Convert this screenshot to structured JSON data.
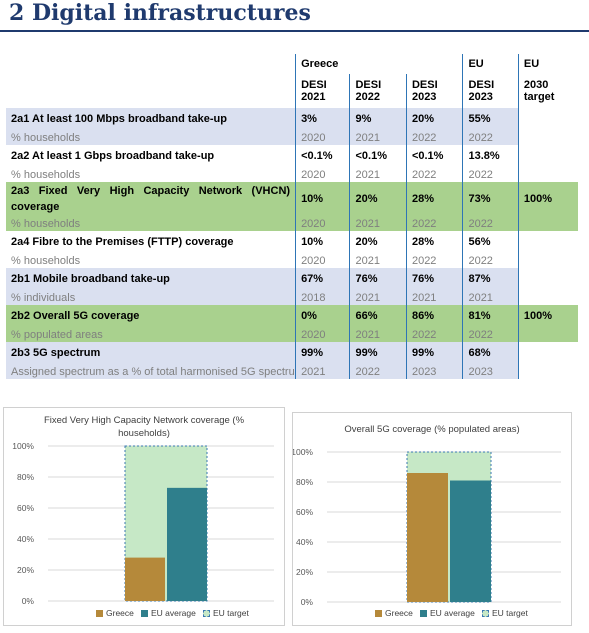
{
  "title": "2 Digital infrastructures",
  "header": {
    "greece": "Greece",
    "eu": "EU",
    "eu2": "EU",
    "cols": [
      {
        "line1": "DESI",
        "line2": "2021"
      },
      {
        "line1": "DESI",
        "line2": "2022"
      },
      {
        "line1": "DESI",
        "line2": "2023"
      },
      {
        "line1": "DESI",
        "line2": "2023"
      },
      {
        "line1": "2030",
        "line2": "target"
      }
    ]
  },
  "rows": [
    {
      "label": "2a1 At least 100 Mbps broadband take-up",
      "sub": "% households",
      "values": [
        "3%",
        "9%",
        "20%",
        "55%",
        ""
      ],
      "years": [
        "2020",
        "2021",
        "2022",
        "2022",
        ""
      ]
    },
    {
      "label": "2a2 At least 1 Gbps broadband take-up",
      "sub": "% households",
      "values": [
        "<0.1%",
        "<0.1%",
        "<0.1%",
        "13.8%",
        ""
      ],
      "years": [
        "2020",
        "2021",
        "2022",
        "2022",
        ""
      ]
    },
    {
      "label": "2a3 Fixed Very High Capacity Network (VHCN) coverage",
      "sub": "% households",
      "values": [
        "10%",
        "20%",
        "28%",
        "73%",
        "100%"
      ],
      "years": [
        "2020",
        "2021",
        "2022",
        "2022",
        ""
      ]
    },
    {
      "label": "2a4 Fibre to the Premises (FTTP) coverage",
      "sub": "% households",
      "values": [
        "10%",
        "20%",
        "28%",
        "56%",
        ""
      ],
      "years": [
        "2020",
        "2021",
        "2022",
        "2022",
        ""
      ]
    },
    {
      "label": "2b1 Mobile broadband take-up",
      "sub": "% individuals",
      "values": [
        "67%",
        "76%",
        "76%",
        "87%",
        ""
      ],
      "years": [
        "2018",
        "2021",
        "2021",
        "2021",
        ""
      ]
    },
    {
      "label": "2b2 Overall 5G coverage",
      "sub": "% populated areas",
      "values": [
        "0%",
        "66%",
        "86%",
        "81%",
        "100%"
      ],
      "years": [
        "2020",
        "2021",
        "2022",
        "2022",
        ""
      ]
    },
    {
      "label": "2b3 5G spectrum",
      "sub": "Assigned spectrum as a % of total harmonised 5G spectrum",
      "values": [
        "99%",
        "99%",
        "99%",
        "68%",
        ""
      ],
      "years": [
        "2021",
        "2022",
        "2023",
        "2023",
        ""
      ]
    }
  ],
  "colors": {
    "greece": "#b5893a",
    "eu_average": "#2f7f8c",
    "eu_target_fill": "#c6e8c6",
    "eu_target_border": "#3b79b2"
  },
  "chart_data": [
    {
      "type": "bar",
      "title": "Fixed Very High Capacity Network coverage (% households)",
      "title_line1": "Fixed Very High Capacity Network coverage (%",
      "title_line2": "households)",
      "ylim": [
        0,
        100
      ],
      "ticks": [
        "0%",
        "20%",
        "40%",
        "60%",
        "80%",
        "100%"
      ],
      "series": [
        {
          "name": "Greece",
          "values": [
            28
          ]
        },
        {
          "name": "EU average",
          "values": [
            73
          ]
        },
        {
          "name": "EU target",
          "values": [
            100
          ]
        }
      ],
      "legend": [
        "Greece",
        "EU average",
        "EU target"
      ]
    },
    {
      "type": "bar",
      "title": "Overall 5G coverage (% populated areas)",
      "ylim": [
        0,
        100
      ],
      "ticks": [
        "0%",
        "20%",
        "40%",
        "60%",
        "80%",
        "100%"
      ],
      "series": [
        {
          "name": "Greece",
          "values": [
            86
          ]
        },
        {
          "name": "EU average",
          "values": [
            81
          ]
        },
        {
          "name": "EU target",
          "values": [
            100
          ]
        }
      ],
      "legend": [
        "Greece",
        "EU average",
        "EU target"
      ]
    }
  ]
}
